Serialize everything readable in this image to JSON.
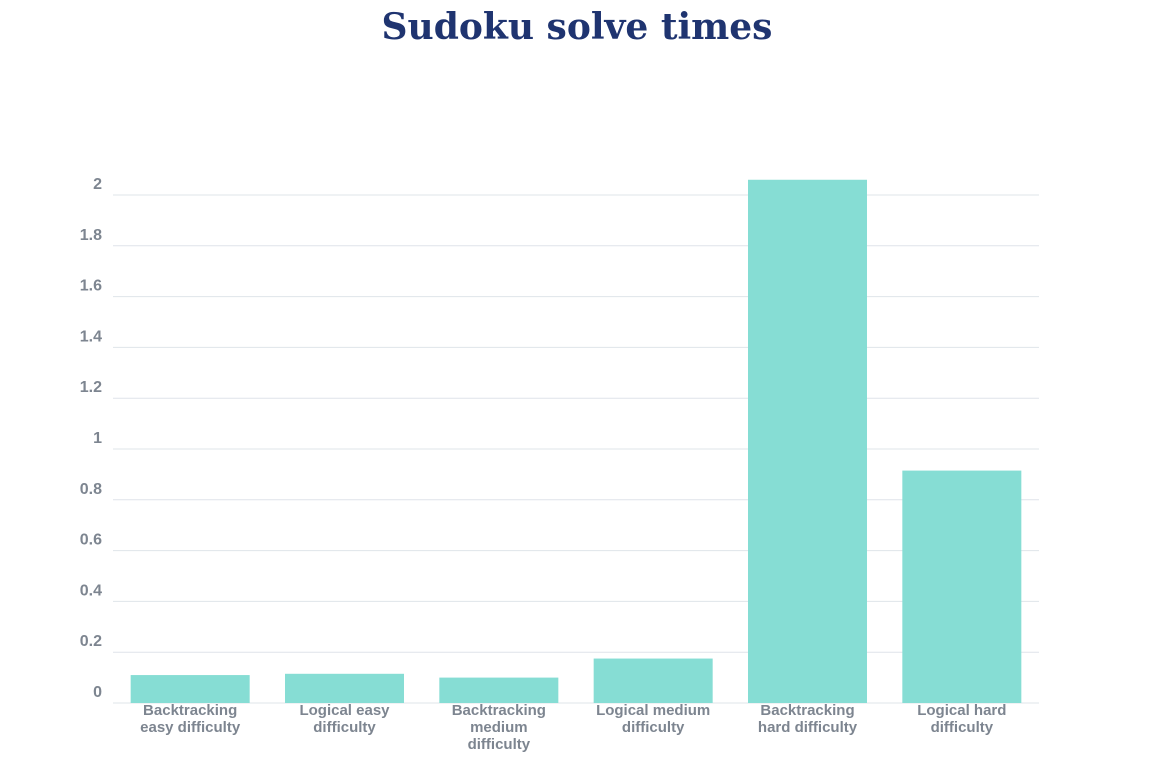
{
  "chart_data": {
    "type": "bar",
    "title": "Sudoku solve times",
    "xlabel": "",
    "ylabel": "",
    "categories": [
      "Backtracking easy difficulty",
      "Logical easy difficulty",
      "Backtracking medium difficulty",
      "Logical medium difficulty",
      "Backtracking hard difficulty",
      "Logical hard difficulty"
    ],
    "values": [
      0.11,
      0.115,
      0.1,
      0.175,
      2.06,
      0.915
    ],
    "ylim": [
      0,
      2
    ],
    "yticks": [
      "0",
      "0.2",
      "0.4",
      "0.6",
      "0.8",
      "1",
      "1.2",
      "1.4",
      "1.6",
      "1.8",
      "2"
    ],
    "grid": true,
    "legend": "none",
    "bar_color": "#86ddd4"
  }
}
